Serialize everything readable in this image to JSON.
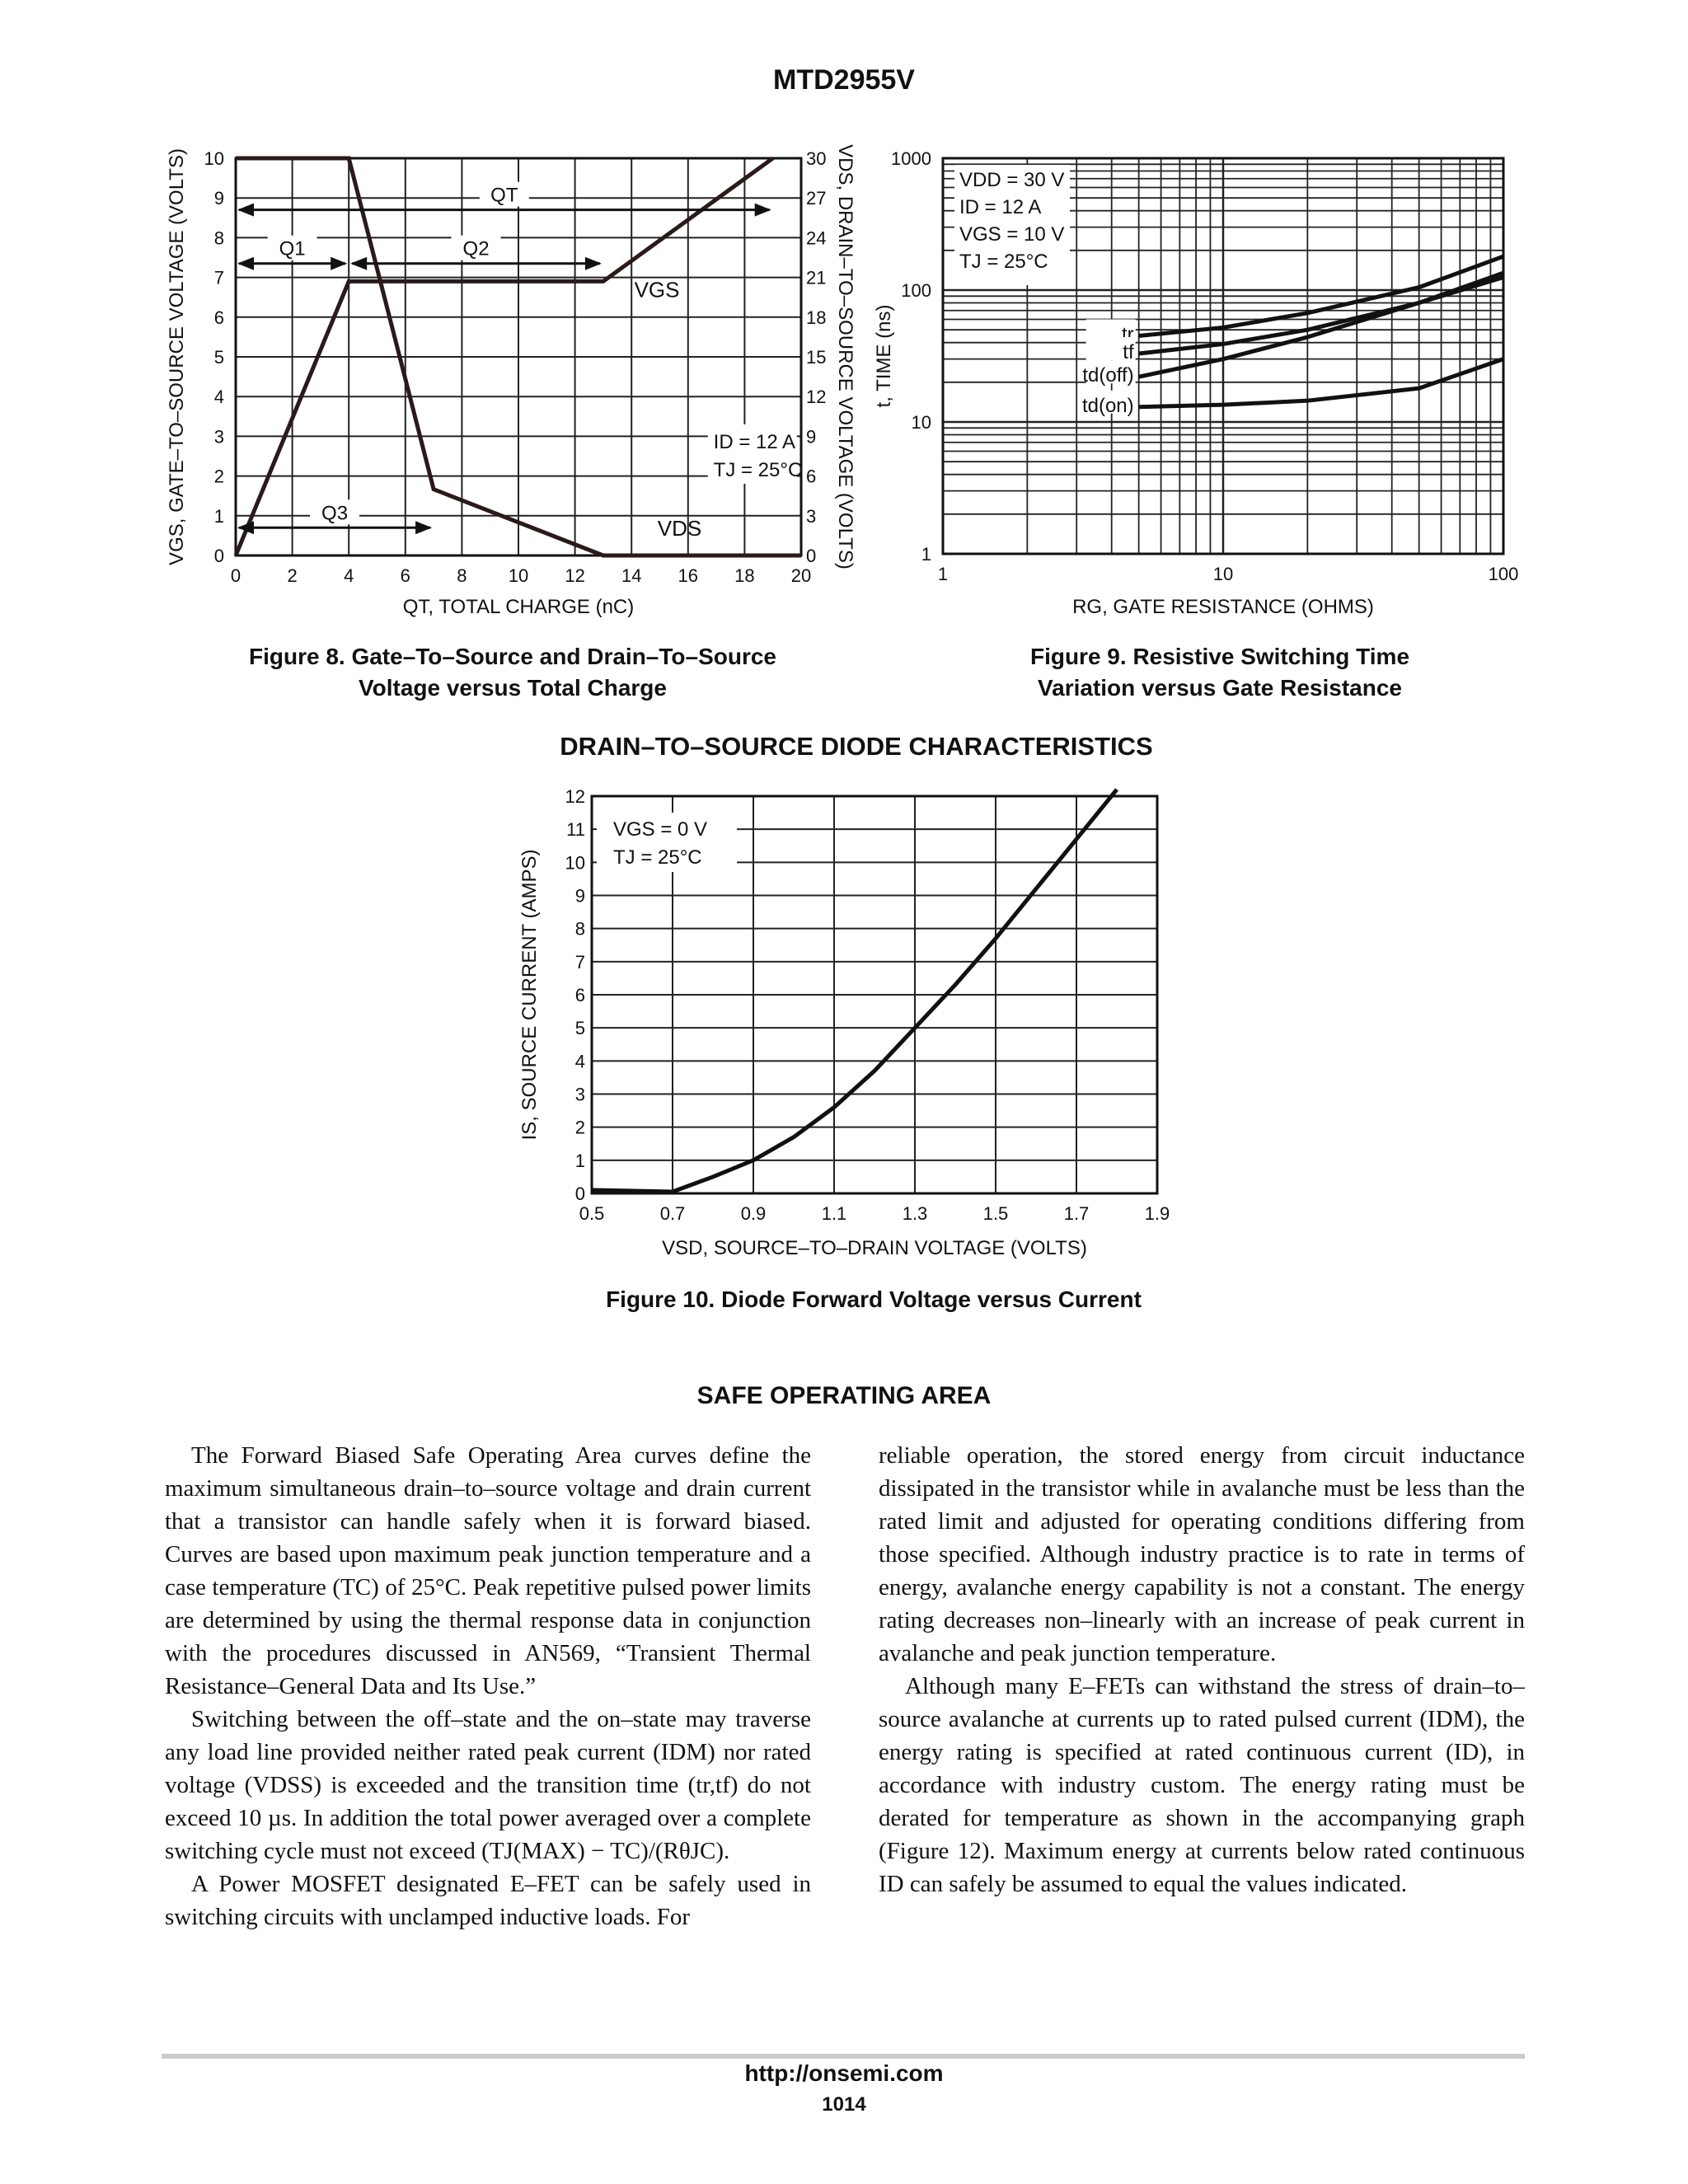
{
  "header": {
    "part_number": "MTD2955V"
  },
  "chart_data": [
    {
      "type": "line",
      "xlabel": "QT, TOTAL CHARGE (nC)",
      "ylabel": "VGS, GATE–TO–SOURCE VOLTAGE (VOLTS)",
      "y2label": "VDS, DRAIN–TO–SOURCE VOLTAGE (VOLTS)",
      "xlim": [
        0,
        20
      ],
      "ylim": [
        0,
        10
      ],
      "y2lim": [
        0,
        30
      ],
      "x_ticks": [
        "0",
        "2",
        "4",
        "6",
        "8",
        "10",
        "12",
        "14",
        "16",
        "18",
        "20"
      ],
      "y_ticks": [
        "0",
        "1",
        "2",
        "3",
        "4",
        "5",
        "6",
        "7",
        "8",
        "9",
        "10"
      ],
      "y2_ticks": [
        "0",
        "3",
        "6",
        "9",
        "12",
        "15",
        "18",
        "21",
        "24",
        "27",
        "30"
      ],
      "grid": true,
      "series": [
        {
          "name": "VGS",
          "axis": "left",
          "x": [
            0,
            4,
            13,
            19
          ],
          "y": [
            0,
            6.9,
            6.9,
            10
          ]
        },
        {
          "name": "VDS",
          "axis": "right",
          "x": [
            0,
            4,
            7,
            13,
            20
          ],
          "y": [
            30,
            30,
            5,
            0,
            0
          ]
        }
      ],
      "annotations": [
        {
          "label": "QT",
          "from": 0,
          "to": 19,
          "level": 8.7
        },
        {
          "label": "Q1",
          "from": 0,
          "to": 4,
          "level": 7.35
        },
        {
          "label": "Q2",
          "from": 4,
          "to": 13,
          "level": 7.35
        },
        {
          "label": "Q3",
          "from": 0,
          "to": 7,
          "level": 0.7
        }
      ],
      "condition_lines": [
        "ID = 12 A",
        "TJ = 25°C"
      ]
    },
    {
      "type": "line",
      "xlabel": "RG, GATE RESISTANCE (OHMS)",
      "ylabel": "t, TIME (ns)",
      "xscale": "log",
      "yscale": "log",
      "xlim": [
        1,
        100
      ],
      "ylim": [
        1,
        1000
      ],
      "x_ticks": [
        "1",
        "10",
        "100"
      ],
      "y_ticks": [
        "1",
        "10",
        "100",
        "1000"
      ],
      "grid": true,
      "series": [
        {
          "name": "tr",
          "x": [
            5,
            10,
            20,
            50,
            100
          ],
          "y": [
            45,
            52,
            67,
            105,
            180
          ]
        },
        {
          "name": "tf",
          "x": [
            5,
            10,
            20,
            50,
            100
          ],
          "y": [
            33,
            39,
            50,
            80,
            135
          ]
        },
        {
          "name": "td(off)",
          "x": [
            5,
            10,
            20,
            50,
            100
          ],
          "y": [
            22,
            30,
            44,
            80,
            125
          ]
        },
        {
          "name": "td(on)",
          "x": [
            5,
            10,
            20,
            50,
            100
          ],
          "y": [
            13,
            13.5,
            14.5,
            18,
            30
          ]
        }
      ],
      "condition_lines": [
        "VDD = 30 V",
        "ID = 12 A",
        "VGS = 10 V",
        "TJ = 25°C"
      ]
    },
    {
      "type": "line",
      "xlabel": "VSD, SOURCE–TO–DRAIN VOLTAGE (VOLTS)",
      "ylabel": "IS, SOURCE CURRENT (AMPS)",
      "xlim": [
        0.5,
        1.9
      ],
      "ylim": [
        0,
        12
      ],
      "x_ticks": [
        "0.5",
        "0.7",
        "0.9",
        "1.1",
        "1.3",
        "1.5",
        "1.7",
        "1.9"
      ],
      "y_ticks": [
        "0",
        "1",
        "2",
        "3",
        "4",
        "5",
        "6",
        "7",
        "8",
        "9",
        "10",
        "11",
        "12"
      ],
      "grid": true,
      "series": [
        {
          "name": "",
          "x": [
            0.5,
            0.7,
            0.8,
            0.9,
            1.0,
            1.1,
            1.2,
            1.3,
            1.4,
            1.5,
            1.6,
            1.7,
            1.8
          ],
          "y": [
            0.1,
            0.05,
            0.5,
            1.0,
            1.7,
            2.6,
            3.7,
            5.0,
            6.3,
            7.7,
            9.2,
            10.7,
            12.2
          ]
        }
      ],
      "condition_lines": [
        "VGS = 0 V",
        "TJ = 25°C"
      ]
    }
  ],
  "captions": {
    "fig8_line1": "Figure 8. Gate–To–Source and Drain–To–Source",
    "fig8_line2": "Voltage versus Total Charge",
    "fig9_line1": "Figure 9. Resistive Switching Time",
    "fig9_line2": "Variation versus Gate Resistance",
    "diode_heading": "DRAIN–TO–SOURCE DIODE CHARACTERISTICS",
    "fig10": "Figure 10. Diode Forward Voltage versus Current"
  },
  "soa": {
    "heading": "SAFE OPERATING AREA",
    "left_p1": "The Forward Biased Safe Operating Area curves define the maximum simultaneous drain–to–source voltage and drain current that a transistor can handle safely when it is forward biased. Curves are based upon maximum peak junction temperature and a case temperature (TC) of 25°C. Peak repetitive pulsed power limits are determined by using the thermal response data in conjunction with the procedures discussed in AN569, “Transient Thermal Resistance–General Data and Its Use.”",
    "left_p2": "Switching between the off–state and the on–state may traverse any load line provided neither rated peak current (IDM) nor rated voltage (VDSS) is exceeded and the transition time (tr,tf) do not exceed 10 µs. In addition the total power averaged over a complete switching cycle must not exceed (TJ(MAX) − TC)/(RθJC).",
    "left_p3": "A Power MOSFET designated E–FET can be safely used in switching circuits with unclamped inductive loads. For",
    "right_p1": "reliable operation, the stored energy from circuit inductance dissipated in the transistor while in avalanche must be less than the rated limit and adjusted for operating conditions differing from those specified. Although industry practice is to rate in terms of energy, avalanche energy capability is not a constant. The energy rating decreases non–linearly with an increase of peak current in avalanche and peak junction temperature.",
    "right_p2": "Although many E–FETs can withstand the stress of drain–to–source avalanche at currents up to rated pulsed current (IDM), the energy rating is specified at rated continuous current (ID), in accordance with industry custom. The energy rating must be derated for temperature as shown in the accompanying graph (Figure 12). Maximum energy at currents below rated continuous ID can safely be assumed to equal the values indicated."
  },
  "footer": {
    "url": "http://onsemi.com",
    "page": "1014"
  }
}
